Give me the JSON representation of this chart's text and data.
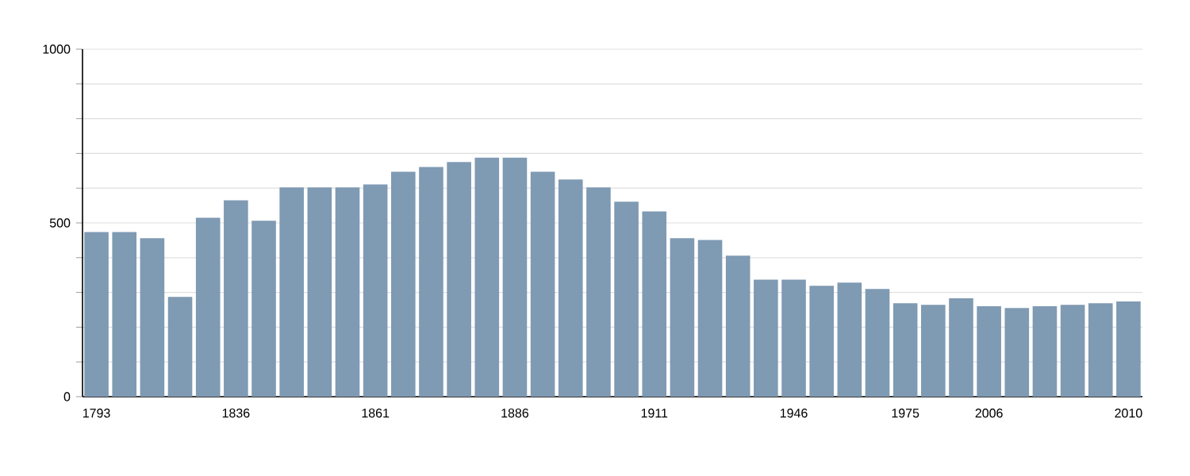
{
  "chart_data": {
    "type": "bar",
    "categories": [
      "1793",
      null,
      null,
      null,
      null,
      "1836",
      null,
      null,
      null,
      null,
      "1861",
      null,
      null,
      null,
      null,
      "1886",
      null,
      null,
      null,
      null,
      "1911",
      null,
      null,
      null,
      null,
      "1946",
      null,
      null,
      null,
      "1975",
      null,
      null,
      "2006",
      null,
      null,
      null,
      null,
      "2010"
    ],
    "values": [
      474,
      474,
      456,
      287,
      515,
      565,
      506,
      602,
      602,
      602,
      611,
      647,
      661,
      675,
      688,
      688,
      647,
      625,
      602,
      561,
      533,
      456,
      451,
      406,
      337,
      337,
      319,
      328,
      310,
      269,
      264,
      283,
      260,
      255,
      260,
      264,
      269,
      274
    ],
    "color": "#7f9ab3",
    "ylim": [
      0,
      1000
    ],
    "yticks": [
      0,
      {
        "value": 100,
        "label": null
      },
      {
        "value": 200,
        "label": null
      },
      {
        "value": 300,
        "label": null
      },
      {
        "value": 400,
        "label": null
      },
      500,
      {
        "value": 600,
        "label": null
      },
      {
        "value": 700,
        "label": null
      },
      {
        "value": 800,
        "label": null
      },
      {
        "value": 900,
        "label": null
      },
      1000
    ],
    "grid": "y"
  }
}
